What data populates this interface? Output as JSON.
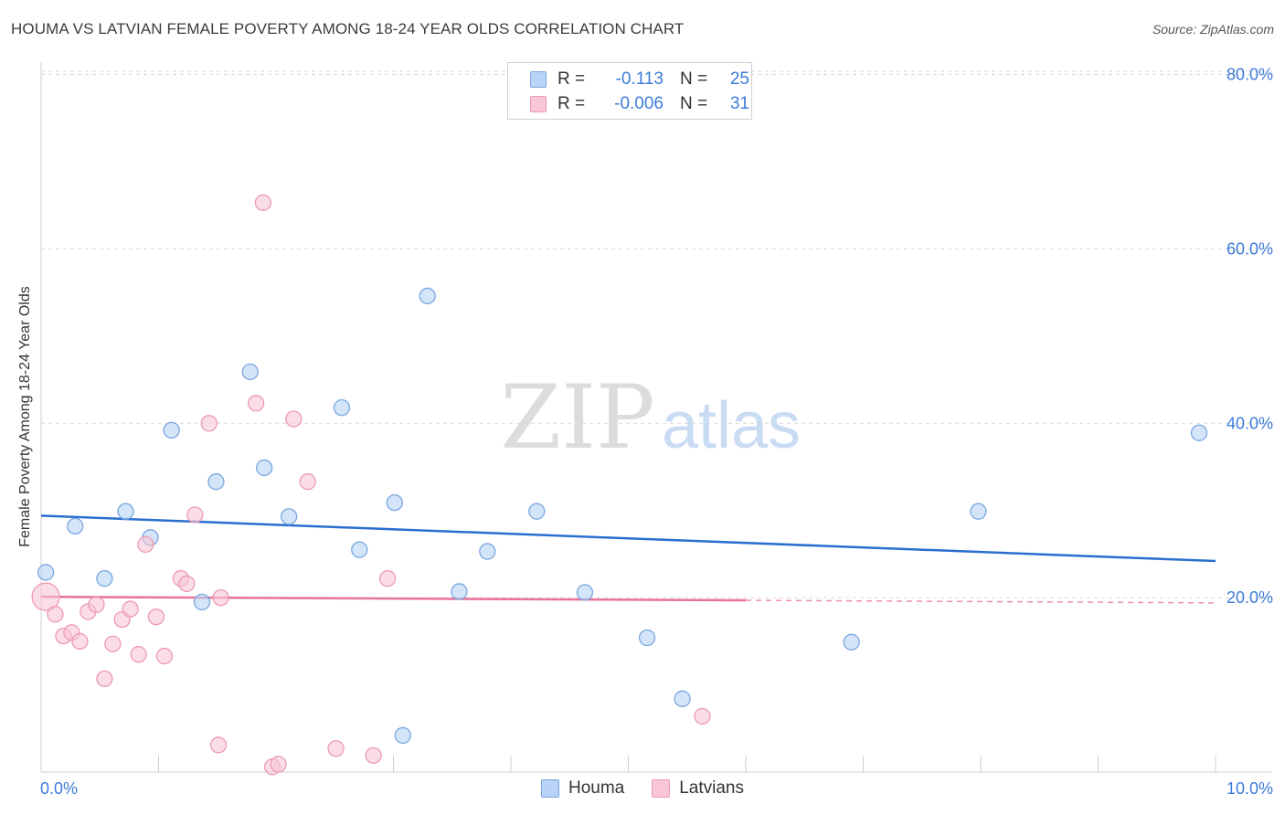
{
  "title": "HOUMA VS LATVIAN FEMALE POVERTY AMONG 18-24 YEAR OLDS CORRELATION CHART",
  "source": "Source: ZipAtlas.com",
  "watermark": {
    "zip": "ZIP",
    "atlas": "atlas"
  },
  "colors": {
    "houma_fill": "#b8d3f5",
    "houma_stroke": "#7aa6e0",
    "houma_line": "#2a6fcf",
    "latvians_fill": "#f9c6d5",
    "latvians_stroke": "#ec9ab3",
    "latvians_line": "#e8729a",
    "tick_text": "#3d7bd9",
    "grid": "#d9d9d9"
  },
  "stats": [
    {
      "r_label": "R =",
      "r_value": "-0.113",
      "n_label": "N =",
      "n_value": "25"
    },
    {
      "r_label": "R =",
      "r_value": "-0.006",
      "n_label": "N =",
      "n_value": "31"
    }
  ],
  "legend": [
    "Houma",
    "Latvians"
  ],
  "chart_data": {
    "type": "scatter",
    "title": "HOUMA VS LATVIAN FEMALE POVERTY AMONG 18-24 YEAR OLDS CORRELATION CHART",
    "xlabel": "",
    "ylabel": "Female Poverty Among 18-24 Year Olds",
    "xlim": [
      0,
      10
    ],
    "ylim": [
      0,
      81
    ],
    "x_ticks": [
      0,
      10
    ],
    "x_tick_labels": [
      "0.0%",
      "10.0%"
    ],
    "y_ticks": [
      20,
      40,
      60,
      80
    ],
    "y_tick_labels": [
      "20.0%",
      "40.0%",
      "60.0%",
      "80.0%"
    ],
    "grid": true,
    "legend_position": "bottom-center",
    "series": [
      {
        "name": "Houma",
        "points": [
          [
            0.04,
            22.9
          ],
          [
            0.29,
            28.2
          ],
          [
            0.54,
            22.2
          ],
          [
            0.72,
            29.9
          ],
          [
            0.93,
            26.9
          ],
          [
            1.11,
            39.2
          ],
          [
            1.37,
            19.5
          ],
          [
            1.49,
            33.3
          ],
          [
            1.78,
            45.9
          ],
          [
            1.9,
            34.9
          ],
          [
            2.11,
            29.3
          ],
          [
            2.56,
            41.8
          ],
          [
            2.71,
            25.5
          ],
          [
            3.01,
            30.9
          ],
          [
            3.29,
            54.6
          ],
          [
            3.56,
            20.7
          ],
          [
            3.8,
            25.3
          ],
          [
            4.22,
            29.9
          ],
          [
            4.63,
            20.6
          ],
          [
            5.16,
            15.4
          ],
          [
            5.46,
            8.4
          ],
          [
            6.9,
            14.9
          ],
          [
            7.98,
            29.9
          ],
          [
            9.86,
            38.9
          ],
          [
            3.08,
            4.2
          ]
        ],
        "trend": {
          "x0": 0,
          "y0": 29.4,
          "x1": 10,
          "y1": 24.2
        }
      },
      {
        "name": "Latvians",
        "points": [
          [
            0.04,
            20.1
          ],
          [
            0.12,
            18.1
          ],
          [
            0.19,
            15.6
          ],
          [
            0.26,
            16.0
          ],
          [
            0.33,
            15.0
          ],
          [
            0.4,
            18.4
          ],
          [
            0.47,
            19.2
          ],
          [
            0.54,
            10.7
          ],
          [
            0.61,
            14.7
          ],
          [
            0.69,
            17.5
          ],
          [
            0.76,
            18.7
          ],
          [
            0.83,
            13.5
          ],
          [
            0.89,
            26.1
          ],
          [
            0.98,
            17.8
          ],
          [
            1.05,
            13.3
          ],
          [
            1.19,
            22.2
          ],
          [
            1.24,
            21.6
          ],
          [
            1.31,
            29.5
          ],
          [
            1.53,
            20.0
          ],
          [
            1.43,
            40.0
          ],
          [
            1.83,
            42.3
          ],
          [
            1.89,
            65.3
          ],
          [
            1.97,
            0.6
          ],
          [
            2.02,
            0.9
          ],
          [
            2.15,
            40.5
          ],
          [
            2.27,
            33.3
          ],
          [
            2.51,
            2.7
          ],
          [
            2.83,
            1.9
          ],
          [
            2.95,
            22.2
          ],
          [
            5.63,
            6.4
          ],
          [
            1.51,
            3.1
          ]
        ],
        "trend": {
          "x0": 0,
          "y0": 20.1,
          "x1": 6.0,
          "y1": 19.7
        },
        "trend_extension": {
          "x0": 6.0,
          "y0": 19.7,
          "x1": 10,
          "y1": 19.4
        }
      }
    ]
  }
}
